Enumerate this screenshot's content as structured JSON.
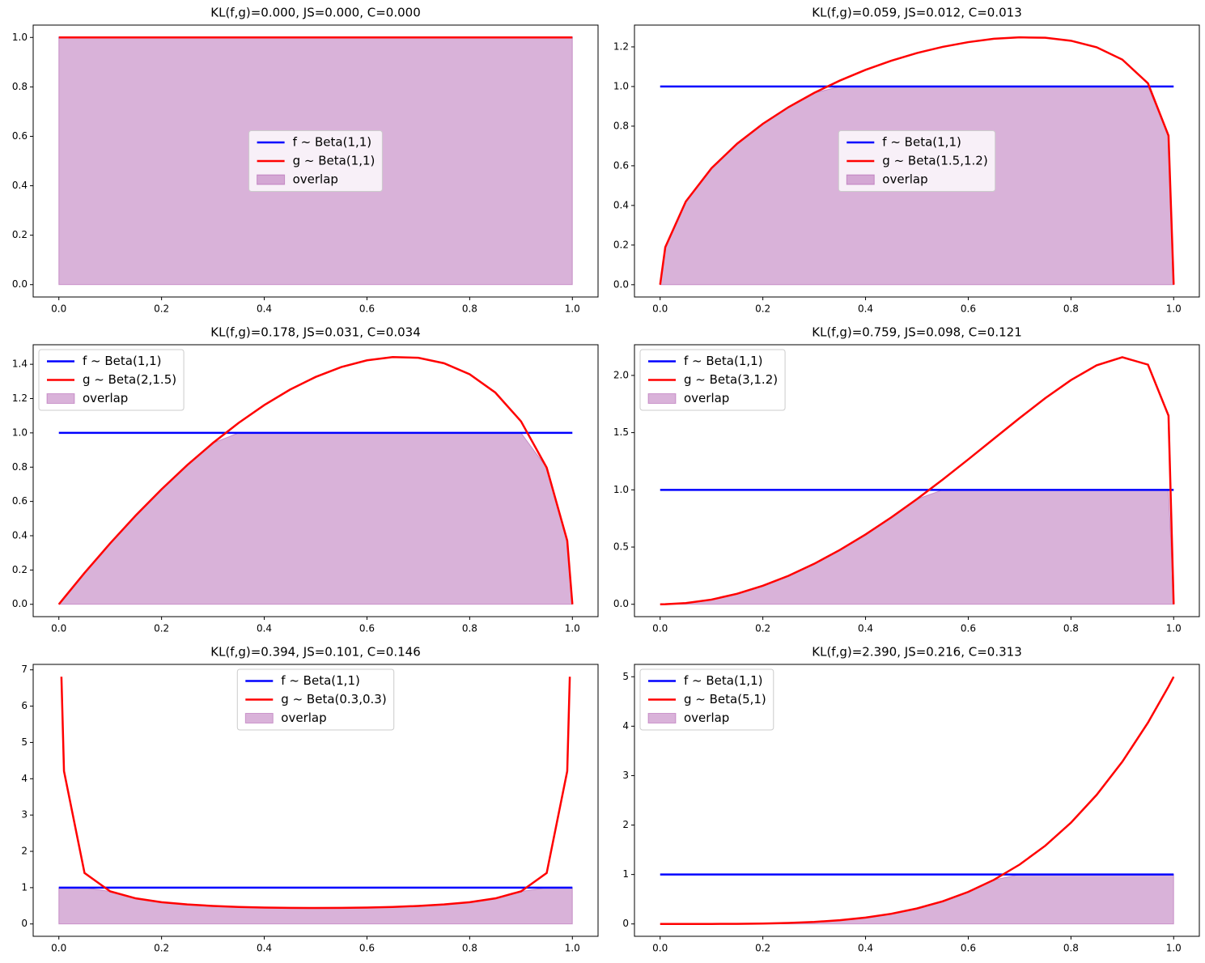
{
  "chart_data": [
    {
      "type": "line",
      "title": "KL(f,g)=0.000, JS=0.000, C=0.000",
      "legend": "center",
      "x": [
        0,
        0.01,
        0.05,
        0.1,
        0.15,
        0.2,
        0.25,
        0.3,
        0.35,
        0.4,
        0.45,
        0.5,
        0.55,
        0.6,
        0.65,
        0.7,
        0.75,
        0.8,
        0.85,
        0.9,
        0.95,
        0.99,
        1
      ],
      "series": [
        {
          "name": "f ~ Beta(1,1)",
          "color": "#0000ff",
          "values": [
            1,
            1,
            1,
            1,
            1,
            1,
            1,
            1,
            1,
            1,
            1,
            1,
            1,
            1,
            1,
            1,
            1,
            1,
            1,
            1,
            1,
            1,
            1
          ]
        },
        {
          "name": "g ~ Beta(1,1)",
          "color": "#ff0000",
          "values": [
            1,
            1,
            1,
            1,
            1,
            1,
            1,
            1,
            1,
            1,
            1,
            1,
            1,
            1,
            1,
            1,
            1,
            1,
            1,
            1,
            1,
            1,
            1
          ]
        },
        {
          "name": "overlap",
          "type": "area",
          "color": "purple",
          "values": [
            1,
            1,
            1,
            1,
            1,
            1,
            1,
            1,
            1,
            1,
            1,
            1,
            1,
            1,
            1,
            1,
            1,
            1,
            1,
            1,
            1,
            1,
            1
          ]
        }
      ],
      "xlim": [
        -0.05,
        1.05
      ],
      "xticks": [
        {
          "value": 0,
          "label": "0.0"
        },
        0.2,
        0.4,
        0.6,
        0.8,
        {
          "value": 1,
          "label": "1.0"
        }
      ],
      "ylim": [
        -0.05,
        1.05
      ],
      "yticks": [
        {
          "value": 0,
          "label": "0.0"
        },
        0.2,
        0.4,
        0.6,
        0.8,
        {
          "value": 1,
          "label": "1.0"
        }
      ]
    },
    {
      "type": "line",
      "title": "KL(f,g)=0.059, JS=0.012, C=0.013",
      "legend": "center",
      "x": [
        0,
        0.01,
        0.05,
        0.1,
        0.15,
        0.2,
        0.25,
        0.3,
        0.35,
        0.4,
        0.45,
        0.5,
        0.55,
        0.6,
        0.65,
        0.7,
        0.75,
        0.8,
        0.85,
        0.9,
        0.95,
        0.99,
        1
      ],
      "series": [
        {
          "name": "f ~ Beta(1,1)",
          "color": "#0000ff",
          "values": [
            1,
            1,
            1,
            1,
            1,
            1,
            1,
            1,
            1,
            1,
            1,
            1,
            1,
            1,
            1,
            1,
            1,
            1,
            1,
            1,
            1,
            1,
            1
          ]
        },
        {
          "name": "g ~ Beta(1.5,1.2)",
          "color": "#ff0000",
          "values": [
            0,
            0.189,
            0.42,
            0.588,
            0.712,
            0.812,
            0.896,
            0.968,
            1.03,
            1.084,
            1.13,
            1.169,
            1.2,
            1.224,
            1.241,
            1.248,
            1.246,
            1.231,
            1.198,
            1.136,
            1.016,
            0.752,
            0
          ]
        },
        {
          "name": "overlap",
          "type": "area",
          "color": "purple",
          "values": [
            0,
            0.189,
            0.42,
            0.588,
            0.712,
            0.812,
            0.896,
            0.968,
            1,
            1,
            1,
            1,
            1,
            1,
            1,
            1,
            1,
            1,
            1,
            1,
            1,
            0.752,
            0
          ]
        }
      ],
      "xlim": [
        -0.05,
        1.05
      ],
      "xticks": [
        {
          "value": 0,
          "label": "0.0"
        },
        0.2,
        0.4,
        0.6,
        0.8,
        {
          "value": 1,
          "label": "1.0"
        }
      ],
      "ylim": [
        -0.062,
        1.31
      ],
      "yticks": [
        {
          "value": 0,
          "label": "0.0"
        },
        0.2,
        0.4,
        0.6,
        0.8,
        {
          "value": 1,
          "label": "1.0"
        },
        1.2
      ]
    },
    {
      "type": "line",
      "title": "KL(f,g)=0.178, JS=0.031, C=0.034",
      "legend": "upper left",
      "x": [
        0,
        0.01,
        0.05,
        0.1,
        0.15,
        0.2,
        0.25,
        0.3,
        0.35,
        0.4,
        0.45,
        0.5,
        0.55,
        0.6,
        0.65,
        0.7,
        0.75,
        0.8,
        0.85,
        0.9,
        0.95,
        0.99,
        1
      ],
      "series": [
        {
          "name": "f ~ Beta(1,1)",
          "color": "#0000ff",
          "values": [
            1,
            1,
            1,
            1,
            1,
            1,
            1,
            1,
            1,
            1,
            1,
            1,
            1,
            1,
            1,
            1,
            1,
            1,
            1,
            1,
            1,
            1,
            1
          ]
        },
        {
          "name": "g ~ Beta(2,1.5)",
          "color": "#ff0000",
          "values": [
            0,
            0.037,
            0.183,
            0.356,
            0.519,
            0.671,
            0.812,
            0.941,
            1.058,
            1.162,
            1.252,
            1.326,
            1.384,
            1.423,
            1.442,
            1.438,
            1.406,
            1.342,
            1.235,
            1.067,
            0.797,
            0.371,
            0
          ]
        },
        {
          "name": "overlap",
          "type": "area",
          "color": "purple",
          "values": [
            0,
            0.037,
            0.183,
            0.356,
            0.519,
            0.671,
            0.812,
            0.941,
            1,
            1,
            1,
            1,
            1,
            1,
            1,
            1,
            1,
            1,
            1,
            1,
            0.797,
            0.371,
            0
          ]
        }
      ],
      "xlim": [
        -0.05,
        1.05
      ],
      "xticks": [
        {
          "value": 0,
          "label": "0.0"
        },
        0.2,
        0.4,
        0.6,
        0.8,
        {
          "value": 1,
          "label": "1.0"
        }
      ],
      "ylim": [
        -0.072,
        1.514
      ],
      "yticks": [
        {
          "value": 0,
          "label": "0.0"
        },
        0.2,
        0.4,
        0.6,
        0.8,
        {
          "value": 1,
          "label": "1.0"
        },
        1.2,
        1.4
      ]
    },
    {
      "type": "line",
      "title": "KL(f,g)=0.759, JS=0.098, C=0.121",
      "legend": "upper left",
      "x": [
        0,
        0.01,
        0.05,
        0.1,
        0.15,
        0.2,
        0.25,
        0.3,
        0.35,
        0.4,
        0.45,
        0.5,
        0.55,
        0.6,
        0.65,
        0.7,
        0.75,
        0.8,
        0.85,
        0.9,
        0.95,
        0.99,
        1
      ],
      "series": [
        {
          "name": "f ~ Beta(1,1)",
          "color": "#0000ff",
          "values": [
            1,
            1,
            1,
            1,
            1,
            1,
            1,
            1,
            1,
            1,
            1,
            1,
            1,
            1,
            1,
            1,
            1,
            1,
            1,
            1,
            1,
            1,
            1
          ]
        },
        {
          "name": "g ~ Beta(3,1.2)",
          "color": "#ff0000",
          "values": [
            0,
            0.0004,
            0.0105,
            0.041,
            0.092,
            0.162,
            0.249,
            0.354,
            0.475,
            0.61,
            0.759,
            0.919,
            1.089,
            1.266,
            1.447,
            1.627,
            1.801,
            1.959,
            2.088,
            2.159,
            2.094,
            1.648,
            0
          ]
        },
        {
          "name": "overlap",
          "type": "area",
          "color": "purple",
          "values": [
            0,
            0.0004,
            0.0105,
            0.041,
            0.092,
            0.162,
            0.249,
            0.354,
            0.475,
            0.61,
            0.759,
            0.919,
            1,
            1,
            1,
            1,
            1,
            1,
            1,
            1,
            1,
            1,
            0
          ]
        }
      ],
      "xlim": [
        -0.05,
        1.05
      ],
      "xticks": [
        {
          "value": 0,
          "label": "0.0"
        },
        0.2,
        0.4,
        0.6,
        0.8,
        {
          "value": 1,
          "label": "1.0"
        }
      ],
      "ylim": [
        -0.108,
        2.268
      ],
      "yticks": [
        {
          "value": 0,
          "label": "0.0"
        },
        0.5,
        {
          "value": 1,
          "label": "1.0"
        },
        1.5,
        {
          "value": 2,
          "label": "2.0"
        }
      ]
    },
    {
      "type": "line",
      "title": "KL(f,g)=0.394, JS=0.101, C=0.146",
      "legend": "upper center",
      "x": [
        0,
        0.005,
        0.01,
        0.05,
        0.1,
        0.15,
        0.2,
        0.25,
        0.3,
        0.35,
        0.4,
        0.45,
        0.5,
        0.55,
        0.6,
        0.65,
        0.7,
        0.75,
        0.8,
        0.85,
        0.9,
        0.95,
        0.99,
        0.995,
        1
      ],
      "series": [
        {
          "name": "f ~ Beta(1,1)",
          "color": "#0000ff",
          "values": [
            1,
            1,
            1,
            1,
            1,
            1,
            1,
            1,
            1,
            1,
            1,
            1,
            1,
            1,
            1,
            1,
            1,
            1,
            1,
            1,
            1,
            1,
            1,
            1,
            1
          ]
        },
        {
          "name": "g ~ Beta(0.3,0.3)",
          "color": "#ff0000",
          "values": [
            null,
            6.81,
            4.21,
            1.404,
            0.898,
            0.704,
            0.6,
            0.537,
            0.496,
            0.469,
            0.452,
            0.442,
            0.439,
            0.442,
            0.452,
            0.469,
            0.496,
            0.537,
            0.6,
            0.704,
            0.898,
            1.404,
            4.21,
            6.81,
            null
          ]
        },
        {
          "name": "overlap",
          "type": "area",
          "color": "purple",
          "values": [
            1,
            1,
            1,
            1,
            0.898,
            0.704,
            0.6,
            0.537,
            0.496,
            0.469,
            0.452,
            0.442,
            0.439,
            0.442,
            0.452,
            0.469,
            0.496,
            0.537,
            0.6,
            0.704,
            0.898,
            1,
            1,
            1,
            1
          ]
        }
      ],
      "xlim": [
        -0.05,
        1.05
      ],
      "xticks": [
        {
          "value": 0,
          "label": "0.0"
        },
        0.2,
        0.4,
        0.6,
        0.8,
        {
          "value": 1,
          "label": "1.0"
        }
      ],
      "ylim": [
        -0.34,
        7.15
      ],
      "yticks": [
        0,
        1,
        2,
        3,
        4,
        5,
        6,
        7
      ]
    },
    {
      "type": "line",
      "title": "KL(f,g)=2.390, JS=0.216, C=0.313",
      "legend": "upper left",
      "x": [
        0,
        0.01,
        0.05,
        0.1,
        0.15,
        0.2,
        0.25,
        0.3,
        0.35,
        0.4,
        0.45,
        0.5,
        0.55,
        0.6,
        0.65,
        0.7,
        0.75,
        0.8,
        0.85,
        0.9,
        0.95,
        0.99,
        1
      ],
      "series": [
        {
          "name": "f ~ Beta(1,1)",
          "color": "#0000ff",
          "values": [
            1,
            1,
            1,
            1,
            1,
            1,
            1,
            1,
            1,
            1,
            1,
            1,
            1,
            1,
            1,
            1,
            1,
            1,
            1,
            1,
            1,
            1,
            1
          ]
        },
        {
          "name": "g ~ Beta(5,1)",
          "color": "#ff0000",
          "values": [
            0,
            0,
            3e-05,
            0.0005,
            0.0025,
            0.008,
            0.0195,
            0.0405,
            0.075,
            0.128,
            0.205,
            0.3125,
            0.4575,
            0.648,
            0.8925,
            1.2005,
            1.582,
            2.048,
            2.61,
            3.2805,
            4.0725,
            4.803,
            5
          ]
        },
        {
          "name": "overlap",
          "type": "area",
          "color": "purple",
          "values": [
            0,
            0,
            3e-05,
            0.0005,
            0.0025,
            0.008,
            0.0195,
            0.0405,
            0.075,
            0.128,
            0.205,
            0.3125,
            0.4575,
            0.648,
            0.8925,
            1,
            1,
            1,
            1,
            1,
            1,
            1,
            1
          ]
        }
      ],
      "xlim": [
        -0.05,
        1.05
      ],
      "xticks": [
        {
          "value": 0,
          "label": "0.0"
        },
        0.2,
        0.4,
        0.6,
        0.8,
        {
          "value": 1,
          "label": "1.0"
        }
      ],
      "ylim": [
        -0.25,
        5.25
      ],
      "yticks": [
        0,
        1,
        2,
        3,
        4,
        5
      ]
    }
  ]
}
